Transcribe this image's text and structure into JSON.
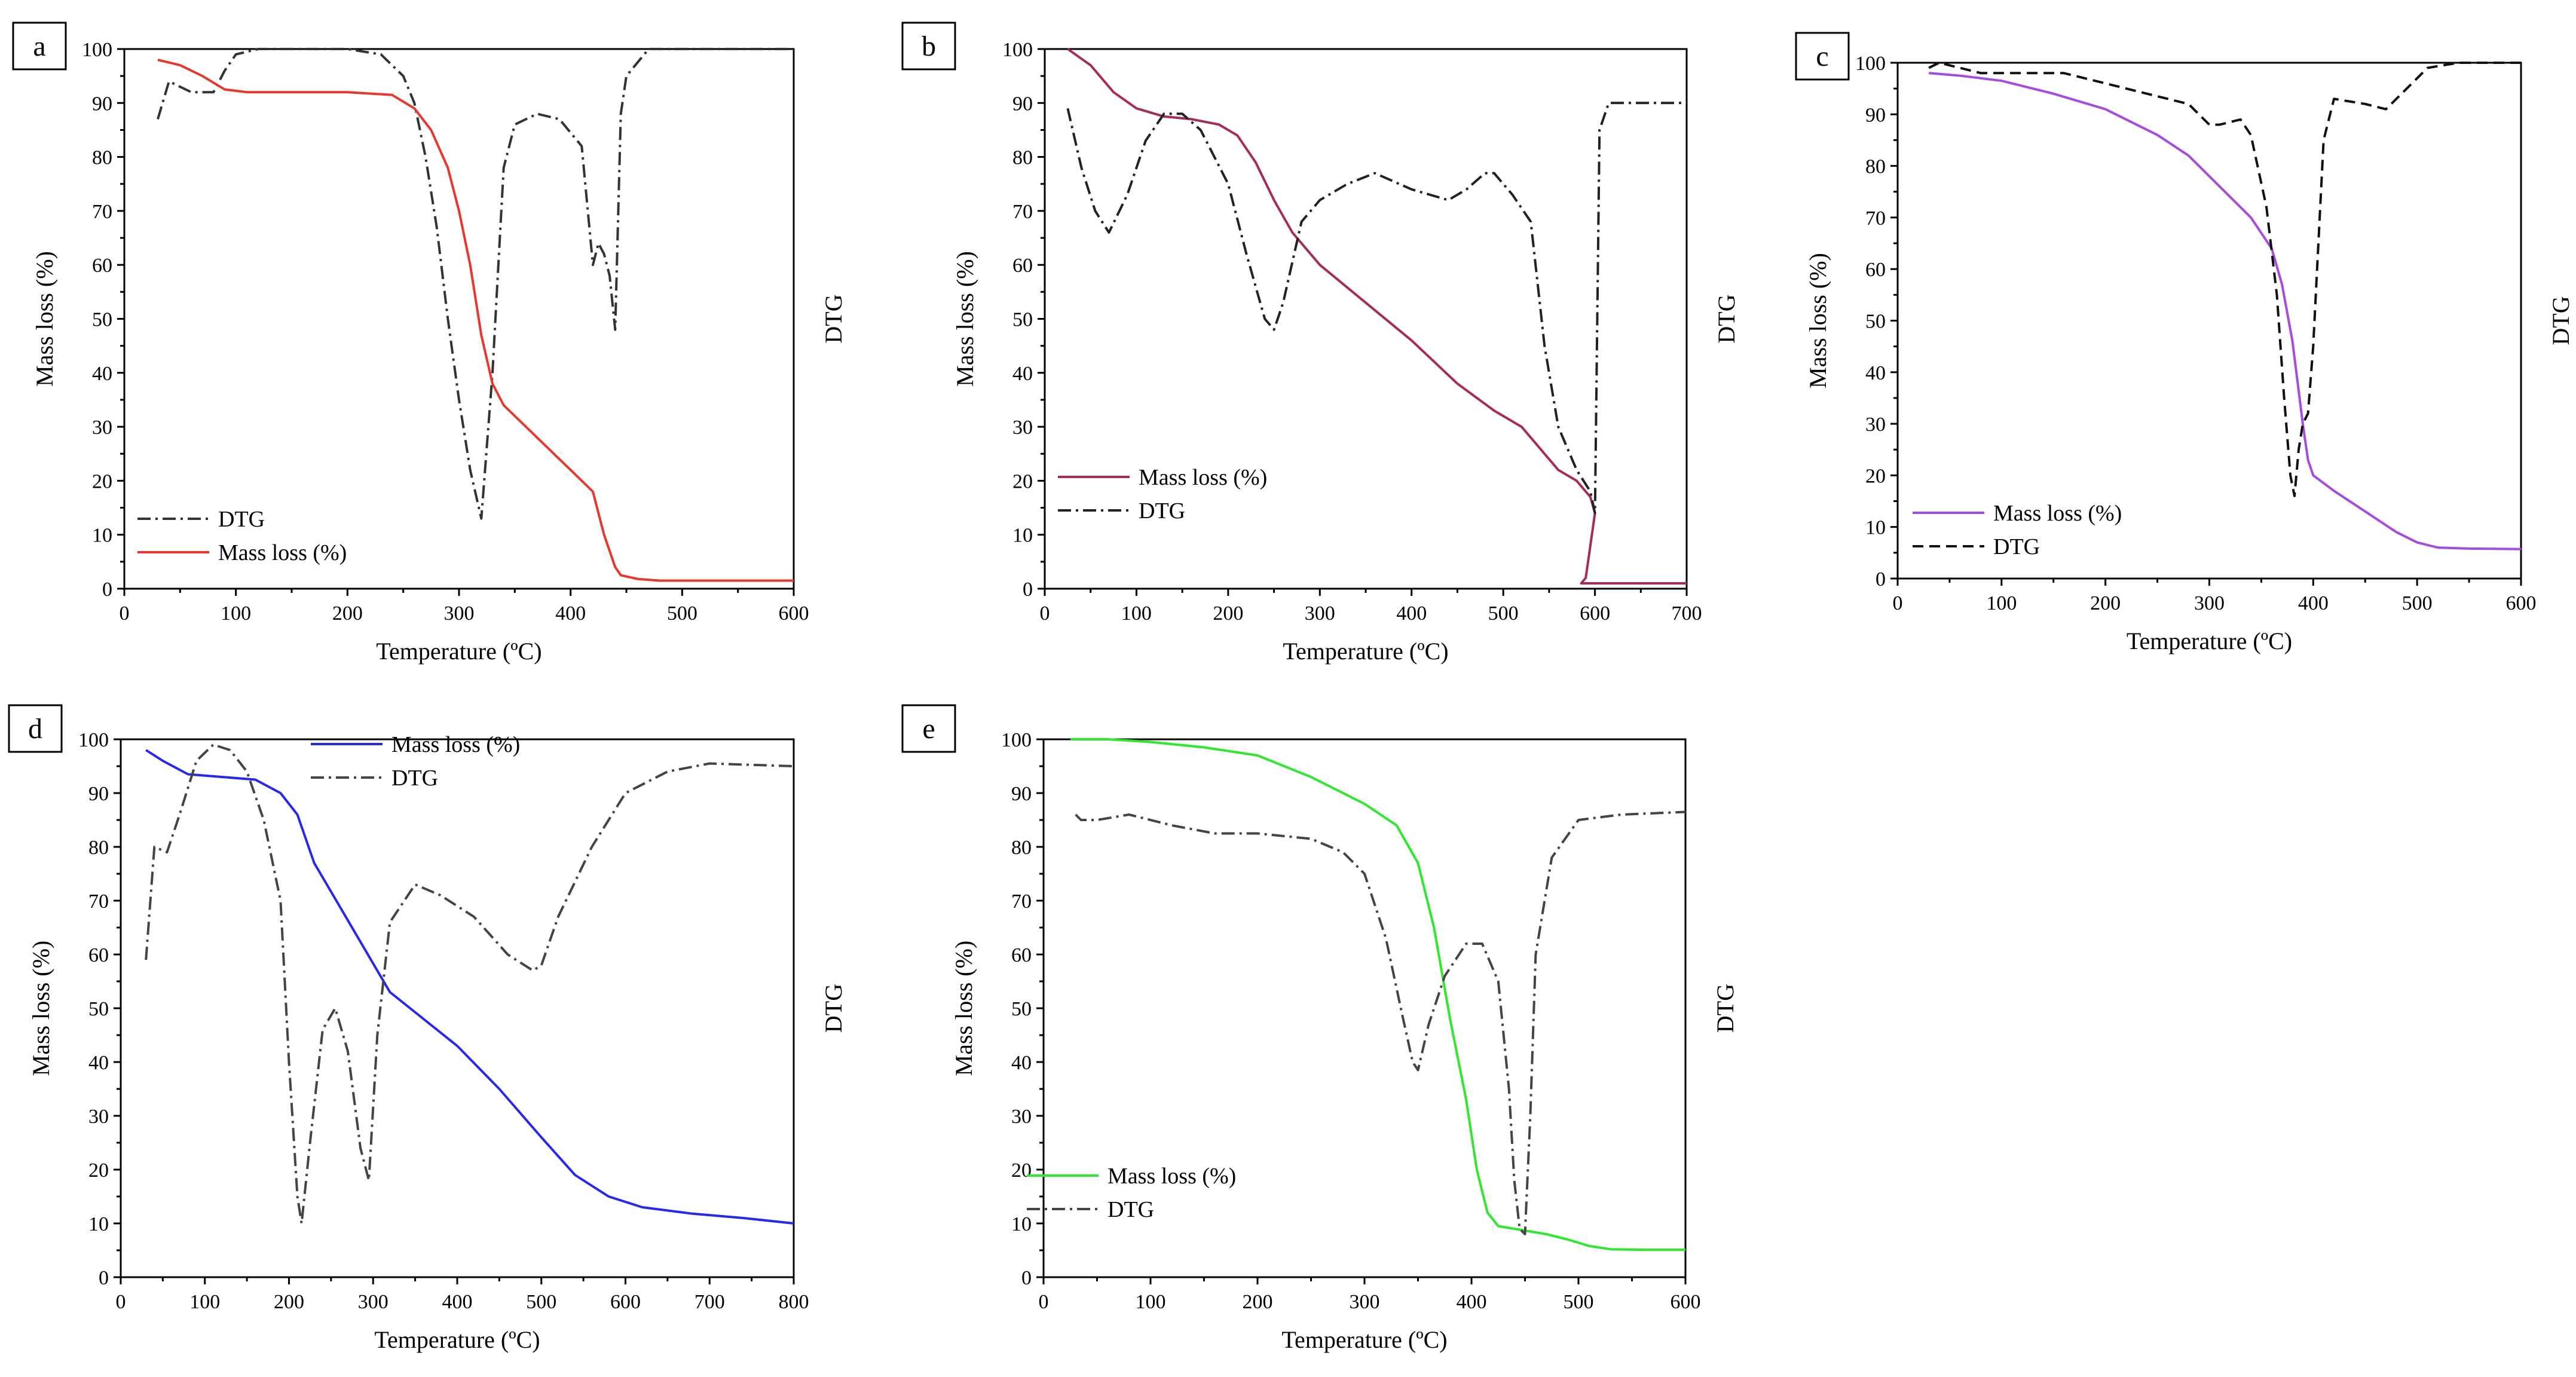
{
  "figure": {
    "background": "#ffffff"
  },
  "chart_data": [
    {
      "panel": "a",
      "type": "line",
      "xlabel": "Temperature (ºC)",
      "ylabel": "Mass loss (%)",
      "y2label": "DTG",
      "xlim": [
        0,
        600
      ],
      "ylim": [
        0,
        100
      ],
      "xticks": [
        0,
        100,
        200,
        300,
        400,
        500,
        600
      ],
      "yticks": [
        0,
        10,
        20,
        30,
        40,
        50,
        60,
        70,
        80,
        90,
        100
      ],
      "legend_position": "bottom-left",
      "legend": [
        "DTG",
        "Mass loss (%)"
      ],
      "series": [
        {
          "name": "DTG",
          "color": "#333333",
          "dash": "dashdot",
          "x": [
            30,
            40,
            60,
            80,
            90,
            100,
            120,
            150,
            200,
            230,
            250,
            260,
            270,
            280,
            290,
            300,
            310,
            320,
            330,
            340,
            350,
            370,
            390,
            410,
            420,
            425,
            430,
            435,
            440,
            445,
            450,
            470,
            500,
            550,
            600
          ],
          "y": [
            87,
            94,
            92,
            92,
            96,
            99,
            100,
            100,
            100,
            99,
            95,
            90,
            80,
            67,
            50,
            35,
            22,
            13,
            40,
            78,
            86,
            88,
            87,
            82,
            60,
            64,
            62,
            58,
            48,
            88,
            95,
            100,
            100,
            100,
            100
          ]
        },
        {
          "name": "Mass loss (%)",
          "color": "#e8372f",
          "dash": "solid",
          "x": [
            30,
            50,
            70,
            90,
            110,
            150,
            200,
            240,
            260,
            275,
            290,
            300,
            310,
            320,
            330,
            340,
            360,
            380,
            400,
            420,
            430,
            440,
            445,
            460,
            480,
            600
          ],
          "y": [
            98,
            97,
            95,
            92.5,
            92,
            92,
            92,
            91.5,
            89,
            85,
            78,
            70,
            60,
            47,
            38,
            34,
            30,
            26,
            22,
            18,
            10,
            4,
            2.5,
            1.8,
            1.5,
            1.5
          ]
        }
      ]
    },
    {
      "panel": "b",
      "type": "line",
      "xlabel": "Temperature (ºC)",
      "ylabel": "Mass loss (%)",
      "y2label": "DTG",
      "xlim": [
        0,
        700
      ],
      "ylim": [
        0,
        100
      ],
      "xticks": [
        0,
        100,
        200,
        300,
        400,
        500,
        600,
        700
      ],
      "yticks": [
        0,
        10,
        20,
        30,
        40,
        50,
        60,
        70,
        80,
        90,
        100
      ],
      "legend_position": "bottom-left",
      "legend": [
        "Mass loss (%)",
        "DTG"
      ],
      "series": [
        {
          "name": "Mass loss (%)",
          "color": "#a62a5a",
          "dash": "solid",
          "x": [
            25,
            50,
            75,
            100,
            130,
            160,
            190,
            210,
            230,
            250,
            270,
            300,
            350,
            400,
            450,
            490,
            520,
            540,
            560,
            580,
            595,
            600,
            590,
            585,
            600,
            700
          ],
          "y": [
            100,
            97,
            92,
            89,
            87.5,
            87,
            86,
            84,
            79,
            72,
            66,
            60,
            53,
            46,
            38,
            33,
            30,
            26,
            22,
            20,
            17,
            14,
            2,
            1,
            1,
            1
          ]
        },
        {
          "name": "DTG",
          "color": "#222222",
          "dash": "dashdot",
          "x": [
            25,
            40,
            55,
            70,
            90,
            110,
            130,
            150,
            170,
            200,
            220,
            240,
            250,
            260,
            280,
            300,
            330,
            360,
            400,
            440,
            460,
            480,
            490,
            510,
            530,
            545,
            560,
            580,
            595,
            600,
            605,
            615,
            650,
            700
          ],
          "y": [
            89,
            78,
            70,
            66,
            73,
            83,
            88,
            88,
            85,
            75,
            62,
            50,
            48,
            53,
            68,
            72,
            75,
            77,
            74,
            72,
            74,
            77,
            77,
            73,
            68,
            45,
            30,
            22,
            18,
            14,
            85,
            90,
            90,
            90
          ]
        }
      ]
    },
    {
      "panel": "c",
      "type": "line",
      "xlabel": "Temperature (ºC)",
      "ylabel": "Mass loss (%)",
      "y2label": "DTG",
      "xlim": [
        0,
        600
      ],
      "ylim": [
        0,
        100
      ],
      "xticks": [
        0,
        100,
        200,
        300,
        400,
        500,
        600
      ],
      "yticks": [
        0,
        10,
        20,
        30,
        40,
        50,
        60,
        70,
        80,
        90,
        100
      ],
      "legend_position": "bottom-left",
      "legend": [
        "Mass loss (%)",
        "DTG"
      ],
      "series": [
        {
          "name": "Mass loss (%)",
          "color": "#a54be0",
          "dash": "solid",
          "x": [
            30,
            60,
            100,
            150,
            200,
            250,
            280,
            300,
            320,
            340,
            360,
            370,
            380,
            385,
            390,
            395,
            400,
            420,
            450,
            480,
            500,
            520,
            550,
            600
          ],
          "y": [
            98,
            97.5,
            96.5,
            94,
            91,
            86,
            82,
            78,
            74,
            70,
            64,
            57,
            46,
            38,
            30,
            23,
            20,
            17,
            13,
            9,
            7,
            6,
            5.8,
            5.7
          ]
        },
        {
          "name": "DTG",
          "color": "#111111",
          "dash": "dashed",
          "x": [
            30,
            40,
            60,
            80,
            120,
            160,
            200,
            240,
            280,
            300,
            310,
            330,
            340,
            355,
            365,
            372,
            378,
            382,
            386,
            390,
            395,
            400,
            405,
            410,
            420,
            450,
            470,
            490,
            510,
            540,
            600
          ],
          "y": [
            99,
            100,
            99,
            98,
            98,
            98,
            96,
            94,
            92,
            88,
            88,
            89,
            86,
            72,
            55,
            35,
            20,
            16,
            25,
            30,
            32,
            45,
            65,
            85,
            93,
            92,
            91,
            95,
            99,
            100,
            100
          ]
        }
      ]
    },
    {
      "panel": "d",
      "type": "line",
      "xlabel": "Temperature (ºC)",
      "ylabel": "Mass loss (%)",
      "y2label": "DTG",
      "xlim": [
        0,
        800
      ],
      "ylim": [
        0,
        100
      ],
      "xticks": [
        0,
        100,
        200,
        300,
        400,
        500,
        600,
        700,
        800
      ],
      "yticks": [
        0,
        10,
        20,
        30,
        40,
        50,
        60,
        70,
        80,
        90,
        100
      ],
      "legend_position": "top-center",
      "legend": [
        "Mass loss (%)",
        "DTG"
      ],
      "series": [
        {
          "name": "Mass loss (%)",
          "color": "#2727ee",
          "dash": "solid",
          "x": [
            30,
            50,
            80,
            120,
            160,
            190,
            210,
            230,
            260,
            290,
            320,
            360,
            400,
            450,
            500,
            540,
            580,
            620,
            680,
            740,
            800
          ],
          "y": [
            98,
            96,
            93.5,
            93,
            92.5,
            90,
            86,
            77,
            69,
            61,
            53,
            48,
            43,
            35,
            26,
            19,
            15,
            13,
            11.8,
            11,
            10
          ]
        },
        {
          "name": "DTG",
          "color": "#444444",
          "dash": "dashdot",
          "x": [
            30,
            40,
            55,
            70,
            90,
            110,
            130,
            150,
            170,
            190,
            200,
            210,
            215,
            225,
            240,
            255,
            270,
            285,
            295,
            305,
            320,
            350,
            380,
            420,
            460,
            490,
            500,
            520,
            560,
            600,
            650,
            700,
            800
          ],
          "y": [
            59,
            80,
            79,
            86,
            96,
            99,
            98,
            94,
            85,
            70,
            40,
            15,
            10,
            25,
            46,
            50,
            42,
            24,
            18,
            45,
            66,
            73,
            71,
            67,
            60,
            57,
            58,
            67,
            80,
            90,
            94,
            95.5,
            95
          ]
        }
      ]
    },
    {
      "panel": "e",
      "type": "line",
      "xlabel": "Temperature (ºC)",
      "ylabel": "Mass loss (%)",
      "y2label": "DTG",
      "xlim": [
        0,
        600
      ],
      "ylim": [
        0,
        100
      ],
      "xticks": [
        0,
        100,
        200,
        300,
        400,
        500,
        600
      ],
      "yticks": [
        0,
        10,
        20,
        30,
        40,
        50,
        60,
        70,
        80,
        90,
        100
      ],
      "legend_position": "bottom-left",
      "legend": [
        "Mass loss (%)",
        "DTG"
      ],
      "series": [
        {
          "name": "Mass loss (%)",
          "color": "#2ee82e",
          "dash": "solid",
          "x": [
            25,
            60,
            100,
            150,
            200,
            250,
            300,
            330,
            350,
            365,
            380,
            395,
            405,
            415,
            425,
            440,
            455,
            470,
            490,
            510,
            530,
            560,
            600
          ],
          "y": [
            100,
            100,
            99.5,
            98.5,
            97,
            93,
            88,
            84,
            77,
            65,
            48,
            33,
            20,
            12,
            9.5,
            9,
            8.5,
            8,
            7,
            5.8,
            5.2,
            5.1,
            5.1
          ]
        },
        {
          "name": "DTG",
          "color": "#444444",
          "dash": "dashdot",
          "x": [
            30,
            35,
            50,
            80,
            120,
            160,
            200,
            250,
            280,
            300,
            320,
            335,
            345,
            350,
            360,
            375,
            395,
            410,
            425,
            435,
            440,
            445,
            450,
            455,
            460,
            475,
            500,
            540,
            600
          ],
          "y": [
            86,
            85,
            85,
            86,
            84,
            82.5,
            82.5,
            81.5,
            79,
            75,
            63,
            49,
            40,
            38.5,
            47,
            56,
            62,
            62,
            55,
            35,
            18,
            9,
            8,
            30,
            60,
            78,
            85,
            86,
            86.5
          ]
        }
      ]
    }
  ]
}
